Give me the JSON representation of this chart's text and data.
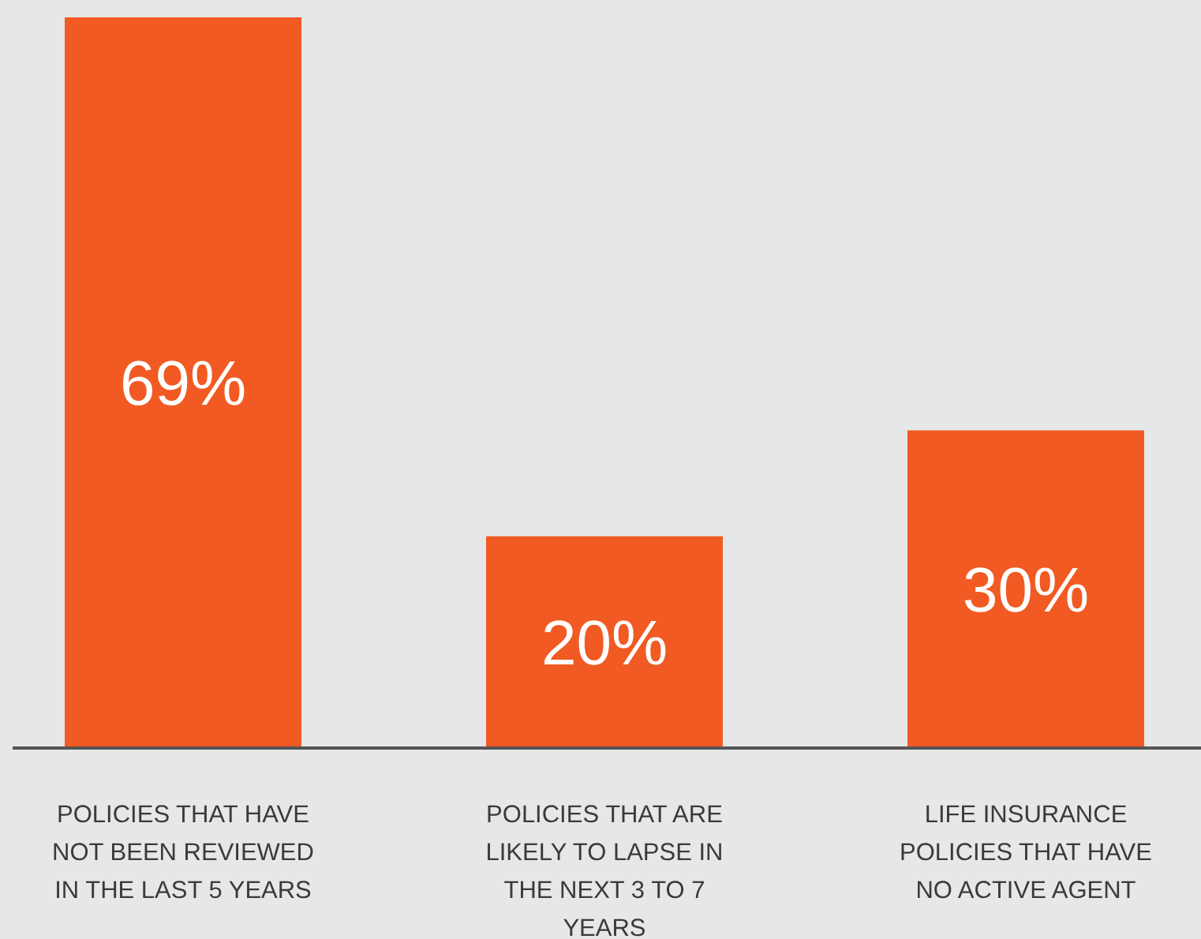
{
  "chart_data": {
    "type": "bar",
    "categories": [
      "POLICIES THAT HAVE NOT BEEN REVIEWED IN THE LAST 5 YEARS",
      "POLICIES THAT ARE LIKELY TO LAPSE IN THE NEXT 3 TO 7 YEARS",
      "LIFE INSURANCE POLICIES THAT HAVE NO ACTIVE AGENT"
    ],
    "values": [
      69,
      20,
      30
    ],
    "value_labels": [
      "69%",
      "20%",
      "30%"
    ],
    "color": "#f15a22"
  }
}
